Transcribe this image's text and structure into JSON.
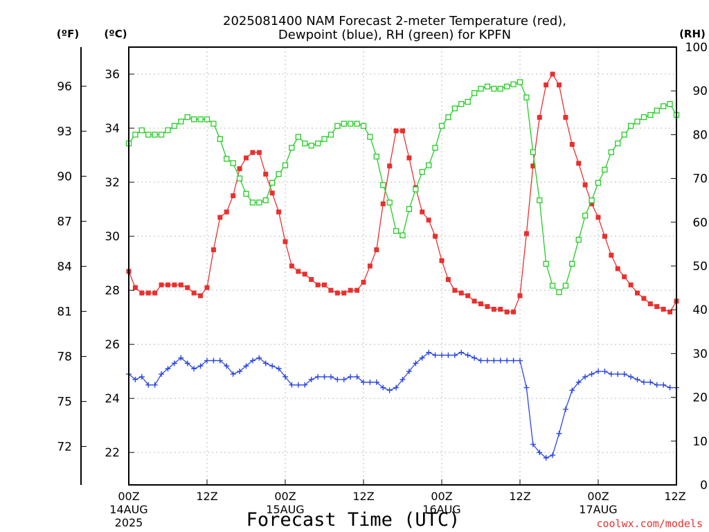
{
  "chart_data": {
    "type": "line",
    "title": "2025081400 NAM Forecast 2-meter Temperature (red),",
    "subtitle": "Dewpoint (blue), RH (green) for KPFN",
    "xlabel": "Forecast Time (UTC)",
    "y_left_outer_unit": "(ºF)",
    "y_left_inner_unit": "(ºC)",
    "y_right_unit": "(RH)",
    "credit": "coolwx.com/models",
    "x_hours_range": [
      0,
      84
    ],
    "ylim_c": [
      20.8,
      37.0
    ],
    "ylim_rh": [
      0,
      100
    ],
    "grid": true,
    "x_ticks": [
      {
        "hour": 0,
        "label": "00Z",
        "date": "14AUG",
        "year": "2025"
      },
      {
        "hour": 12,
        "label": "12Z",
        "date": "",
        "year": ""
      },
      {
        "hour": 24,
        "label": "00Z",
        "date": "15AUG",
        "year": ""
      },
      {
        "hour": 36,
        "label": "12Z",
        "date": "",
        "year": ""
      },
      {
        "hour": 48,
        "label": "00Z",
        "date": "16AUG",
        "year": ""
      },
      {
        "hour": 60,
        "label": "12Z",
        "date": "",
        "year": ""
      },
      {
        "hour": 72,
        "label": "00Z",
        "date": "17AUG",
        "year": ""
      },
      {
        "hour": 84,
        "label": "12Z",
        "date": "",
        "year": ""
      }
    ],
    "c_ticks": [
      "22",
      "24",
      "26",
      "28",
      "30",
      "32",
      "34",
      "36"
    ],
    "f_ticks": [
      "72",
      "75",
      "78",
      "81",
      "84",
      "87",
      "90",
      "93",
      "96"
    ],
    "rh_ticks": [
      "0",
      "10",
      "20",
      "30",
      "40",
      "50",
      "60",
      "70",
      "80",
      "90",
      "100"
    ],
    "series": [
      {
        "name": "Temperature",
        "unit": "C",
        "color": "#e8302e",
        "marker": "filled-square",
        "values": [
          28.7,
          28.1,
          27.9,
          27.9,
          27.9,
          28.2,
          28.2,
          28.2,
          28.2,
          28.1,
          27.9,
          27.8,
          28.1,
          29.5,
          30.7,
          30.9,
          31.5,
          32.5,
          32.9,
          33.1,
          33.1,
          32.3,
          31.6,
          30.9,
          29.8,
          28.9,
          28.7,
          28.6,
          28.4,
          28.2,
          28.2,
          28.0,
          27.9,
          27.9,
          28.0,
          28.0,
          28.3,
          28.9,
          29.5,
          31.2,
          32.6,
          33.9,
          33.9,
          32.9,
          31.8,
          30.9,
          30.6,
          30.0,
          29.1,
          28.4,
          28.0,
          27.9,
          27.8,
          27.6,
          27.5,
          27.4,
          27.3,
          27.3,
          27.2,
          27.2,
          27.8,
          30.1,
          32.6,
          34.4,
          35.6,
          36.0,
          35.6,
          34.4,
          33.4,
          32.7,
          31.9,
          31.2,
          30.7,
          30.0,
          29.3,
          28.8,
          28.5,
          28.2,
          27.9,
          27.7,
          27.5,
          27.4,
          27.3,
          27.2,
          27.6
        ]
      },
      {
        "name": "Dewpoint",
        "unit": "C",
        "color": "#2b46e0",
        "marker": "plus",
        "values": [
          24.9,
          24.7,
          24.8,
          24.5,
          24.5,
          24.9,
          25.1,
          25.3,
          25.5,
          25.3,
          25.1,
          25.2,
          25.4,
          25.4,
          25.4,
          25.2,
          24.9,
          25.0,
          25.2,
          25.4,
          25.5,
          25.3,
          25.2,
          25.1,
          24.8,
          24.5,
          24.5,
          24.5,
          24.7,
          24.8,
          24.8,
          24.8,
          24.7,
          24.7,
          24.8,
          24.8,
          24.6,
          24.6,
          24.6,
          24.4,
          24.3,
          24.4,
          24.7,
          25.0,
          25.3,
          25.5,
          25.7,
          25.6,
          25.6,
          25.6,
          25.6,
          25.7,
          25.6,
          25.5,
          25.4,
          25.4,
          25.4,
          25.4,
          25.4,
          25.4,
          25.4,
          24.4,
          22.3,
          22.0,
          21.8,
          21.9,
          22.7,
          23.6,
          24.3,
          24.6,
          24.8,
          24.9,
          25.0,
          25.0,
          24.9,
          24.9,
          24.9,
          24.8,
          24.7,
          24.6,
          24.6,
          24.5,
          24.5,
          24.4,
          24.4
        ]
      },
      {
        "name": "RH",
        "unit": "%",
        "color": "#22cc22",
        "marker": "open-square",
        "values": [
          78,
          80,
          81,
          80,
          80,
          80,
          81,
          82,
          83,
          84,
          83.5,
          83.5,
          83.5,
          82.5,
          79,
          74.5,
          73.5,
          70,
          66.5,
          64.5,
          64.5,
          65,
          69,
          71,
          73,
          77,
          79.5,
          78,
          77.5,
          78,
          79,
          80,
          82,
          82.5,
          82.5,
          82.5,
          82,
          79.5,
          75,
          68.5,
          64.5,
          58,
          57,
          63,
          67.5,
          71.5,
          73,
          77,
          82,
          84,
          86,
          87,
          87.5,
          89.5,
          90.5,
          91,
          90.5,
          90.5,
          91,
          91.5,
          92,
          88.5,
          76,
          65,
          50.5,
          45.5,
          44,
          45.5,
          50.5,
          56,
          61.5,
          65,
          69,
          72,
          76,
          78,
          80,
          82,
          83,
          84,
          84.5,
          85.5,
          86.5,
          87,
          84.5
        ]
      }
    ]
  }
}
